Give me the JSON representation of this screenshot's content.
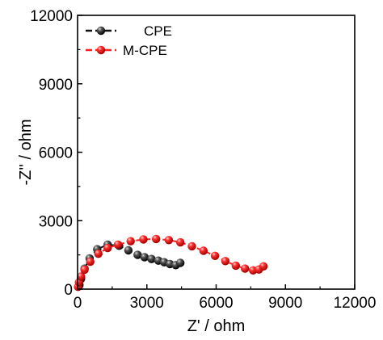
{
  "chart_data": {
    "type": "scatter",
    "xlabel": "Z' / ohm",
    "ylabel": "-Z'' / ohm",
    "xlim": [
      0,
      12000
    ],
    "ylim": [
      0,
      12000
    ],
    "x_ticks": [
      "0",
      "3000",
      "6000",
      "9000",
      "12000"
    ],
    "y_ticks": [
      "0",
      "3000",
      "6000",
      "9000",
      "12000"
    ],
    "legend_position": "top-left",
    "grid": false,
    "series": [
      {
        "name": "CPE",
        "color": "#111111",
        "line_style": "dashed",
        "marker": "sphere",
        "points": [
          [
            80,
            180
          ],
          [
            150,
            450
          ],
          [
            300,
            900
          ],
          [
            520,
            1350
          ],
          [
            850,
            1750
          ],
          [
            1300,
            1950
          ],
          [
            1800,
            1900
          ],
          [
            2200,
            1700
          ],
          [
            2600,
            1500
          ],
          [
            2900,
            1400
          ],
          [
            3200,
            1320
          ],
          [
            3500,
            1250
          ],
          [
            3750,
            1180
          ],
          [
            4000,
            1100
          ],
          [
            4250,
            1050
          ],
          [
            4450,
            1150
          ]
        ]
      },
      {
        "name": "M-CPE",
        "color": "#ff2020",
        "line_style": "dashed",
        "marker": "sphere",
        "points": [
          [
            20,
            100
          ],
          [
            60,
            300
          ],
          [
            150,
            550
          ],
          [
            300,
            850
          ],
          [
            550,
            1200
          ],
          [
            900,
            1550
          ],
          [
            1300,
            1800
          ],
          [
            1750,
            1950
          ],
          [
            2300,
            2100
          ],
          [
            2850,
            2180
          ],
          [
            3400,
            2200
          ],
          [
            3950,
            2150
          ],
          [
            4450,
            2050
          ],
          [
            4950,
            1880
          ],
          [
            5450,
            1680
          ],
          [
            5950,
            1460
          ],
          [
            6400,
            1230
          ],
          [
            6850,
            1030
          ],
          [
            7250,
            900
          ],
          [
            7600,
            820
          ],
          [
            7850,
            860
          ],
          [
            8050,
            1000
          ]
        ]
      }
    ]
  }
}
